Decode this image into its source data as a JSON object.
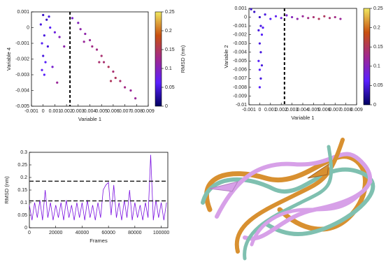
{
  "chart_data": [
    {
      "type": "scatter",
      "xlabel": "Variable 1",
      "ylabel": "Variable 4",
      "x": [
        0,
        -0.0002,
        0.0003,
        0.0001,
        -0.0001,
        0.0004,
        0,
        0.0002,
        -0.0001,
        0.0001,
        0.0006,
        0.001,
        0.0014,
        0.0018,
        0.0008,
        0.0012,
        0.0005,
        0.0025,
        0.003,
        0.0032,
        0.0036,
        0.004,
        0.0042,
        0.0046,
        0.005,
        0.0052,
        0.0056,
        0.006,
        0.0062,
        0.0066,
        0.007,
        0.0075,
        0.0079,
        0.0035,
        0.0048,
        0.0058
      ],
      "y": [
        0.0008,
        0.0002,
        0.0005,
        -0.0005,
        -0.001,
        -0.0012,
        -0.0018,
        -0.0022,
        -0.0027,
        -0.003,
        0,
        -0.0003,
        -0.0006,
        -0.0012,
        -0.0025,
        -0.0035,
        0.0007,
        0.0006,
        0.0003,
        -0.0001,
        -0.0004,
        -0.0008,
        -0.0012,
        -0.0014,
        -0.0018,
        -0.0022,
        -0.0025,
        -0.0028,
        -0.0032,
        -0.0034,
        -0.0038,
        -0.004,
        -0.0045,
        -0.0009,
        -0.0022,
        -0.0034
      ],
      "c": [
        0.04,
        0.05,
        0.04,
        0.05,
        0.06,
        0.05,
        0.05,
        0.06,
        0.07,
        0.06,
        0.06,
        0.08,
        0.1,
        0.11,
        0.09,
        0.12,
        0.05,
        0.09,
        0.1,
        0.11,
        0.11,
        0.12,
        0.13,
        0.13,
        0.14,
        0.14,
        0.15,
        0.14,
        0.15,
        0.14,
        0.13,
        0.12,
        0.12,
        0.12,
        0.14,
        0.15
      ],
      "xlim": [
        -0.001,
        0.009
      ],
      "xticks": [
        -0.001,
        0,
        0.001,
        0.002,
        0.003,
        0.004,
        0.005,
        0.006,
        0.007,
        0.008,
        0.009
      ],
      "ylim": [
        -0.005,
        0.001
      ],
      "yticks": [
        -0.005,
        -0.004,
        -0.003,
        -0.002,
        -0.001,
        0,
        0.001
      ],
      "vline": 0.0023,
      "clim": [
        0,
        0.25
      ],
      "cticks": [
        0,
        0.05,
        0.1,
        0.15,
        0.2,
        0.25
      ],
      "clabel": "RMSD (nm)",
      "colormap": [
        "#000060",
        "#5a20ff",
        "#a02890",
        "#c85010",
        "#f0e860"
      ]
    },
    {
      "type": "scatter",
      "xlabel": "Variable 1",
      "ylabel": "Variable 2",
      "x": [
        0,
        0.0005,
        0.001,
        0.0015,
        0.002,
        0.0025,
        0.003,
        0.0035,
        0.004,
        0.0045,
        0.005,
        0.0055,
        0.006,
        0.0065,
        0.007,
        0.0075,
        -0.0005,
        -0.0008,
        0.0001,
        -0.0001,
        0.0002,
        0,
        0.0001,
        -0.0001,
        0.0002,
        0,
        0.0001,
        0,
        0.0003
      ],
      "y": [
        0,
        0.0003,
        -0.0002,
        0.0001,
        -0.0001,
        0.0002,
        0,
        -0.0002,
        0.0001,
        -0.0001,
        0,
        -0.0002,
        0.0001,
        -0.0001,
        0,
        -0.0002,
        0.0006,
        0.0009,
        -0.001,
        -0.0015,
        -0.002,
        -0.003,
        -0.004,
        -0.005,
        -0.0055,
        -0.006,
        -0.007,
        -0.008,
        -0.0012
      ],
      "c": [
        0.04,
        0.05,
        0.06,
        0.07,
        0.08,
        0.09,
        0.1,
        0.11,
        0.12,
        0.13,
        0.14,
        0.15,
        0.15,
        0.14,
        0.13,
        0.12,
        0.04,
        0.04,
        0.05,
        0.05,
        0.06,
        0.05,
        0.05,
        0.06,
        0.05,
        0.06,
        0.05,
        0.06,
        0.06
      ],
      "xlim": [
        -0.001,
        0.009
      ],
      "xticks": [
        -0.001,
        0,
        0.001,
        0.002,
        0.003,
        0.004,
        0.005,
        0.006,
        0.007,
        0.008,
        0.009
      ],
      "ylim": [
        -0.01,
        0.001
      ],
      "yticks": [
        -0.01,
        -0.009,
        -0.008,
        -0.007,
        -0.006,
        -0.005,
        -0.004,
        -0.003,
        -0.002,
        -0.001,
        0,
        0.001
      ],
      "vline": 0.0023,
      "clim": [
        0,
        0.25
      ],
      "cticks": [
        0,
        0.05,
        0.1,
        0.15,
        0.2,
        0.25
      ],
      "clabel": "RMSD (nm)",
      "colormap": [
        "#000060",
        "#5a20ff",
        "#a02890",
        "#c85010",
        "#f0e860"
      ]
    },
    {
      "type": "line",
      "xlabel": "Frames",
      "ylabel": "RMSD (nm)",
      "x": [
        0,
        2000,
        4000,
        6000,
        8000,
        10000,
        12000,
        14000,
        16000,
        18000,
        20000,
        22000,
        24000,
        26000,
        28000,
        30000,
        32000,
        34000,
        36000,
        38000,
        40000,
        42000,
        44000,
        46000,
        48000,
        50000,
        52000,
        54000,
        56000,
        58000,
        60000,
        62000,
        64000,
        66000,
        68000,
        70000,
        72000,
        74000,
        76000,
        78000,
        80000,
        82000,
        84000,
        86000,
        88000,
        90000,
        92000,
        94000,
        96000,
        98000,
        100000,
        102000,
        104000
      ],
      "series": [
        {
          "color": "#7a10e0",
          "values": [
            0.09,
            0.03,
            0.1,
            0.04,
            0.11,
            0.03,
            0.15,
            0.04,
            0.1,
            0.03,
            0.09,
            0.04,
            0.1,
            0.03,
            0.11,
            0.04,
            0.09,
            0.03,
            0.1,
            0.04,
            0.1,
            0.03,
            0.11,
            0.04,
            0.09,
            0.03,
            0.1,
            0.04,
            0.15,
            0.17,
            0.18,
            0.05,
            0.17,
            0.04,
            0.1,
            0.03,
            0.11,
            0.04,
            0.15,
            0.03,
            0.1,
            0.04,
            0.09,
            0.03,
            0.1,
            0.04,
            0.29,
            0.03,
            0.11,
            0.04,
            0.1,
            0.03,
            0.1
          ]
        }
      ],
      "xlim": [
        0,
        105000
      ],
      "xticks": [
        0,
        20000,
        40000,
        60000,
        80000,
        100000
      ],
      "ylim": [
        0,
        0.3
      ],
      "yticks": [
        0,
        0.05,
        0.1,
        0.15,
        0.2,
        0.25,
        0.3
      ],
      "hlines": [
        0.185,
        0.107
      ]
    }
  ]
}
